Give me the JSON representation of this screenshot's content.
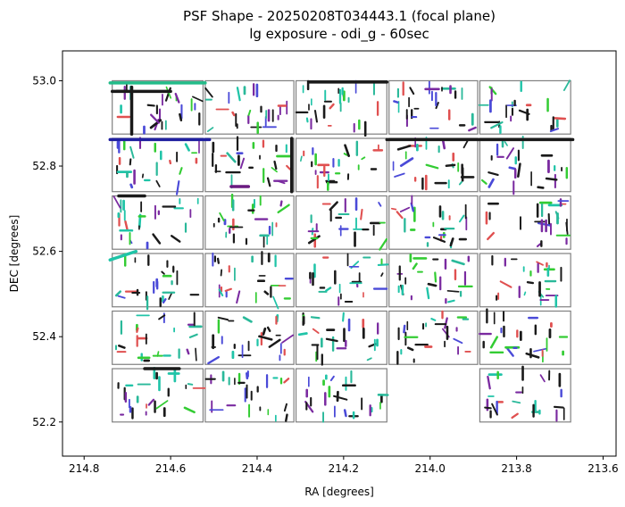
{
  "chart_data": {
    "type": "scatter",
    "title": "PSF Shape - 20250208T034443.1 (focal plane)",
    "subtitle": "lg exposure - odi_g - 60sec",
    "xlabel": "RA [degrees]",
    "ylabel": "DEC [degrees]",
    "xlim": [
      214.85,
      213.57
    ],
    "ylim": [
      52.12,
      53.07
    ],
    "x_inverted": true,
    "xticks": [
      214.8,
      214.6,
      214.4,
      214.2,
      214.0,
      213.8,
      213.6
    ],
    "xtick_labels": [
      "214.8",
      "214.6",
      "214.4",
      "214.2",
      "214.0",
      "213.8",
      "213.6"
    ],
    "yticks": [
      52.2,
      52.4,
      52.6,
      52.8,
      53.0
    ],
    "ytick_labels": [
      "52.2",
      "52.4",
      "52.6",
      "52.8",
      "53.0"
    ],
    "grid": false,
    "ota_outline_color": "#808080",
    "ota_columns_ra": [
      [
        214.735,
        214.525
      ],
      [
        214.52,
        214.315
      ],
      [
        214.31,
        214.1
      ],
      [
        214.095,
        213.89
      ],
      [
        213.885,
        213.675
      ]
    ],
    "ota_rows_dec": [
      [
        53.0,
        52.875
      ],
      [
        52.865,
        52.74
      ],
      [
        52.73,
        52.605
      ],
      [
        52.595,
        52.47
      ],
      [
        52.46,
        52.335
      ],
      [
        52.325,
        52.2
      ]
    ],
    "missing_otas": [
      [
        5,
        3
      ]
    ],
    "whisker_colors": [
      "#1a1a1a",
      "#1a1a1a",
      "#1a1a1a",
      "#2ab99a",
      "#20c4a8",
      "#4a4ad8",
      "#7a2aa0",
      "#33cc33",
      "#e05050"
    ],
    "heavy_features": [
      {
        "ra": [
          214.74,
          214.52
        ],
        "dec": [
          52.995,
          52.995
        ],
        "color": "#22bb88"
      },
      {
        "ra": [
          214.735,
          214.6
        ],
        "dec": [
          52.975,
          52.975
        ],
        "color": "#1a1a1a"
      },
      {
        "ra": [
          214.69,
          214.69
        ],
        "dec": [
          52.985,
          52.875
        ],
        "color": "#1a1a1a"
      },
      {
        "ra": [
          214.74,
          214.51
        ],
        "dec": [
          52.862,
          52.862
        ],
        "color": "#2020a0"
      },
      {
        "ra": [
          214.32,
          214.32
        ],
        "dec": [
          52.865,
          52.74
        ],
        "color": "#1a1a1a"
      },
      {
        "ra": [
          214.1,
          213.67
        ],
        "dec": [
          52.862,
          52.862
        ],
        "color": "#1a1a1a"
      },
      {
        "ra": [
          214.28,
          214.1
        ],
        "dec": [
          52.997,
          52.997
        ],
        "color": "#1a1a1a"
      },
      {
        "ra": [
          214.46,
          214.42
        ],
        "dec": [
          52.752,
          52.752
        ],
        "color": "#6a1a80"
      },
      {
        "ra": [
          214.74,
          214.68
        ],
        "dec": [
          52.58,
          52.6
        ],
        "color": "#20c4a8"
      },
      {
        "ra": [
          214.66,
          214.58
        ],
        "dec": [
          52.325,
          52.325
        ],
        "color": "#1a1a1a"
      },
      {
        "ra": [
          214.72,
          214.66
        ],
        "dec": [
          52.73,
          52.73
        ],
        "color": "#1a1a1a"
      }
    ]
  }
}
